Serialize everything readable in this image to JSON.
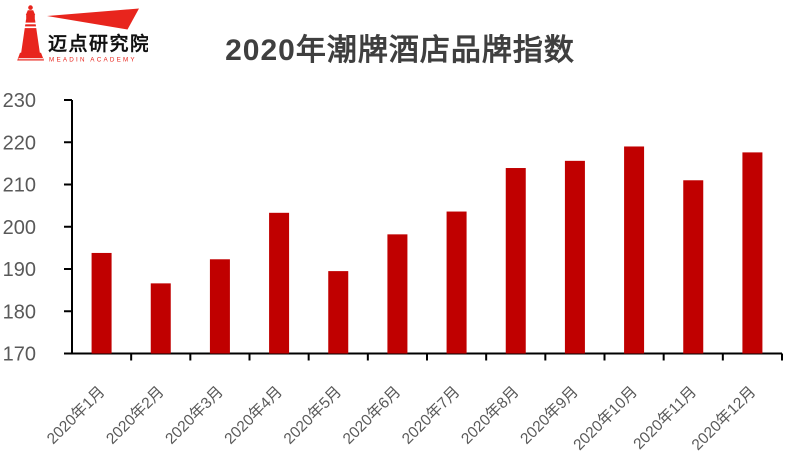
{
  "logo": {
    "brand_name": "迈点研究院",
    "brand_subtitle": "MEADIN ACADEMY",
    "brand_color": "#E8251D"
  },
  "header": {
    "title": "2020年潮牌酒店品牌指数"
  },
  "chart_data": {
    "type": "bar",
    "title": "2020年潮牌酒店品牌指数",
    "categories": [
      "2020年1月",
      "2020年2月",
      "2020年3月",
      "2020年4月",
      "2020年5月",
      "2020年6月",
      "2020年7月",
      "2020年8月",
      "2020年9月",
      "2020年10月",
      "2020年11月",
      "2020年12月"
    ],
    "values": [
      193.8,
      186.6,
      192.3,
      203.3,
      189.5,
      198.2,
      203.6,
      213.9,
      215.6,
      219.0,
      211.0,
      217.6
    ],
    "xlabel": "",
    "ylabel": "",
    "ylim": [
      170,
      230
    ],
    "yticks": [
      170,
      180,
      190,
      200,
      210,
      220,
      230
    ],
    "grid": false,
    "legend": "none",
    "bar_color": "#C00000",
    "axis_color": "#000000",
    "tick_label_color": "#595959"
  }
}
